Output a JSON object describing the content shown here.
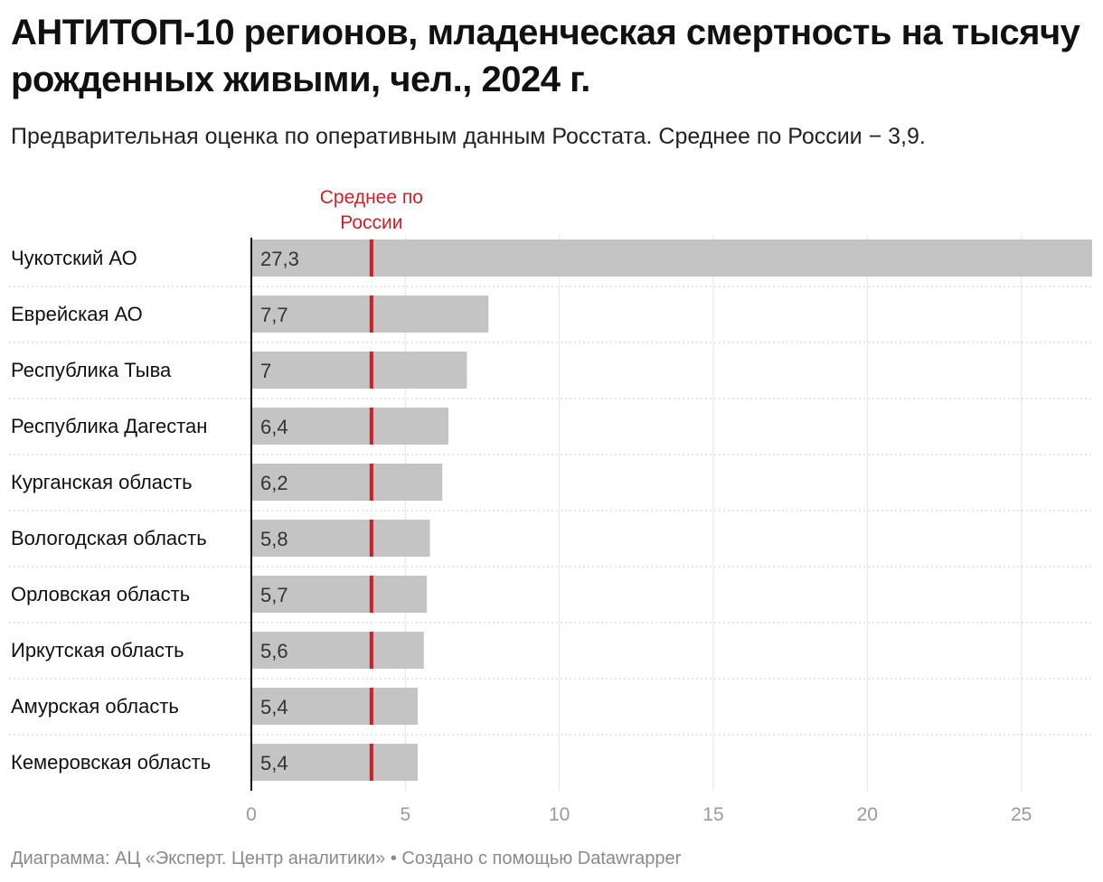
{
  "title": "АНТИТОП-10 регионов, младенческая смертность на тысячу рожденных живыми, чел., 2024 г.",
  "subtitle": "Предварительная оценка по оперативным данным Росстата. Среднее по России − 3,9.",
  "footer": "Диаграмма: АЦ «Эксперт. Центр аналитики» • Создано с помощью Datawrapper",
  "colors": {
    "bar": "#c4c4c4",
    "reference_line": "#d11f26",
    "axis": "#111111",
    "grid": "#e3e3e3",
    "tick_text": "#9a9a9a"
  },
  "chart_data": {
    "type": "bar",
    "orientation": "horizontal",
    "categories": [
      "Чукотский АО",
      "Еврейская АО",
      "Республика Тыва",
      "Республика Дагестан",
      "Курганская область",
      "Вологодская область",
      "Орловская область",
      "Иркутская область",
      "Амурская область",
      "Кемеровская область"
    ],
    "values": [
      27.3,
      7.7,
      7,
      6.4,
      6.2,
      5.8,
      5.7,
      5.6,
      5.4,
      5.4
    ],
    "value_labels": [
      "27,3",
      "7,7",
      "7",
      "6,4",
      "6,2",
      "5,8",
      "5,7",
      "5,6",
      "5,4",
      "5,4"
    ],
    "xlim": [
      0,
      27.3
    ],
    "xticks": [
      0,
      5,
      10,
      15,
      20,
      25
    ],
    "xtick_labels": [
      "0",
      "5",
      "10",
      "15",
      "20",
      "25"
    ],
    "grid": true,
    "reference_line": {
      "value": 3.9,
      "label_lines": [
        "Среднее по",
        "России"
      ]
    }
  }
}
